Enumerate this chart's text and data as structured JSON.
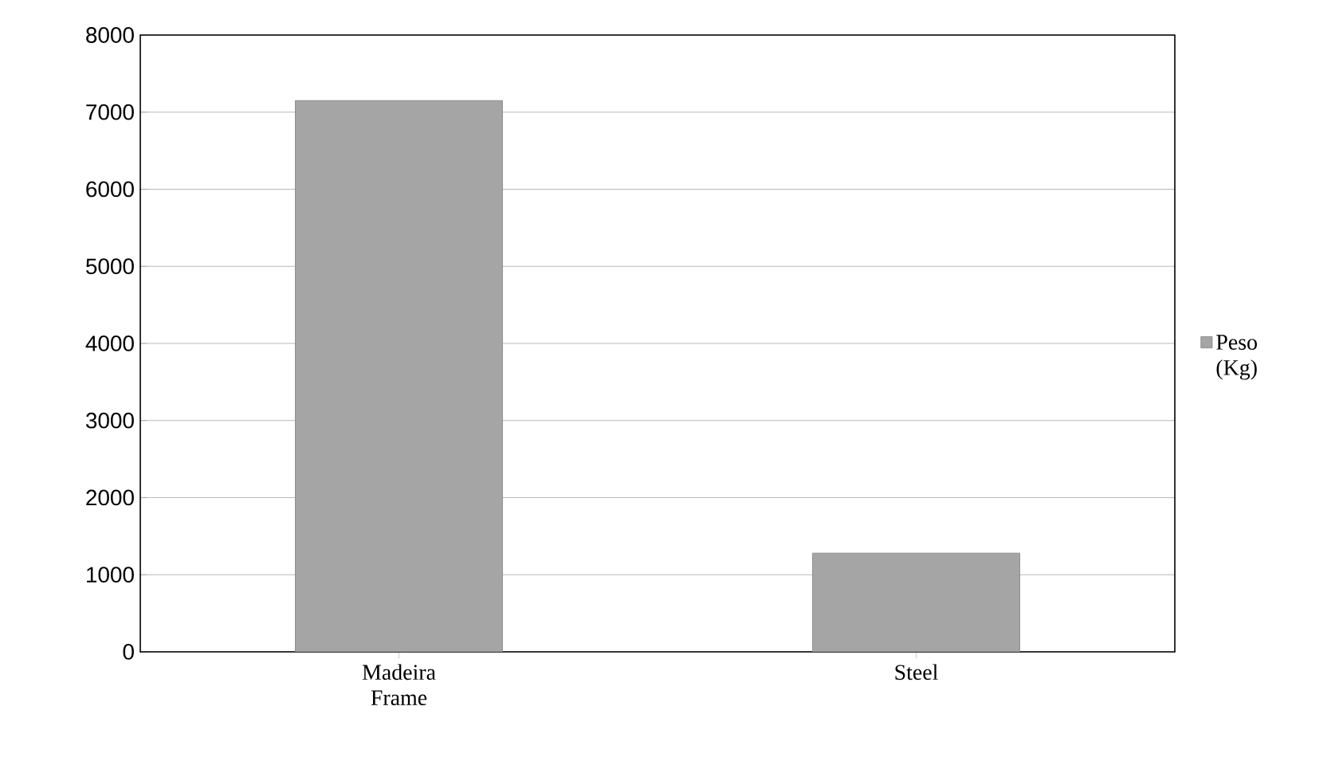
{
  "chart_data": {
    "type": "bar",
    "categories": [
      "Madeira Frame",
      "Steel"
    ],
    "series": [
      {
        "name": "Peso (Kg)",
        "color": "#a5a5a5",
        "values": [
          7150,
          1280
        ]
      }
    ],
    "ylim": [
      0,
      8000
    ],
    "yticks": [
      0,
      1000,
      2000,
      3000,
      4000,
      5000,
      6000,
      7000,
      8000
    ],
    "grid": "y",
    "legend": "right"
  }
}
